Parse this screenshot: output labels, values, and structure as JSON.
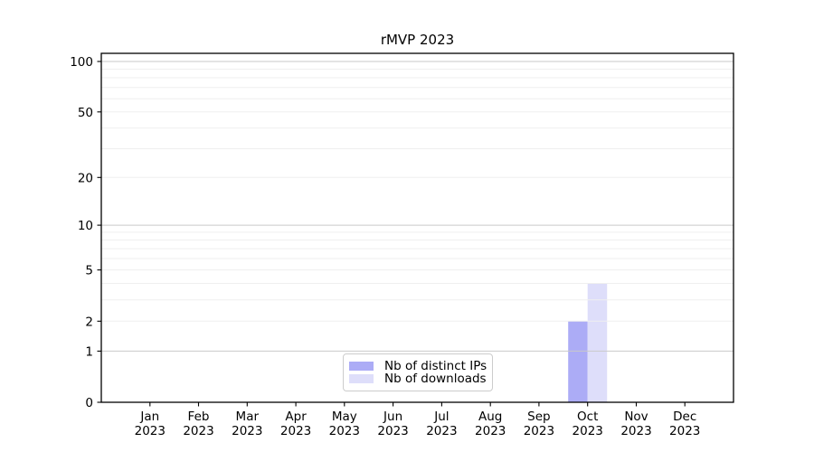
{
  "chart_data": {
    "type": "bar",
    "title": "rMVP 2023",
    "categories": [
      "Jan",
      "Feb",
      "Mar",
      "Apr",
      "May",
      "Jun",
      "Jul",
      "Aug",
      "Sep",
      "Oct",
      "Nov",
      "Dec"
    ],
    "category_year": "2023",
    "series": [
      {
        "name": "Nb of distinct IPs",
        "color": "#acacf6",
        "values": [
          0,
          0,
          0,
          0,
          0,
          0,
          0,
          0,
          0,
          2,
          0,
          0
        ]
      },
      {
        "name": "Nb of downloads",
        "color": "#dedefa",
        "values": [
          0,
          0,
          0,
          0,
          0,
          0,
          0,
          0,
          0,
          4,
          0,
          0
        ]
      }
    ],
    "y_scale": "log1p",
    "y_ticks": [
      0,
      1,
      2,
      5,
      10,
      20,
      50,
      100
    ],
    "ylim": [
      0,
      112
    ],
    "grid": {
      "major_values": [
        1,
        10,
        100
      ],
      "minor_values": [
        2,
        3,
        4,
        5,
        6,
        7,
        8,
        9,
        20,
        30,
        40,
        50,
        60,
        70,
        80,
        90
      ],
      "major_color": "#c9c9c9",
      "minor_color": "#efefef"
    },
    "legend_position": "lower center"
  },
  "colors": {
    "background": "#ffffff",
    "axis": "#000000",
    "text": "#000000"
  }
}
